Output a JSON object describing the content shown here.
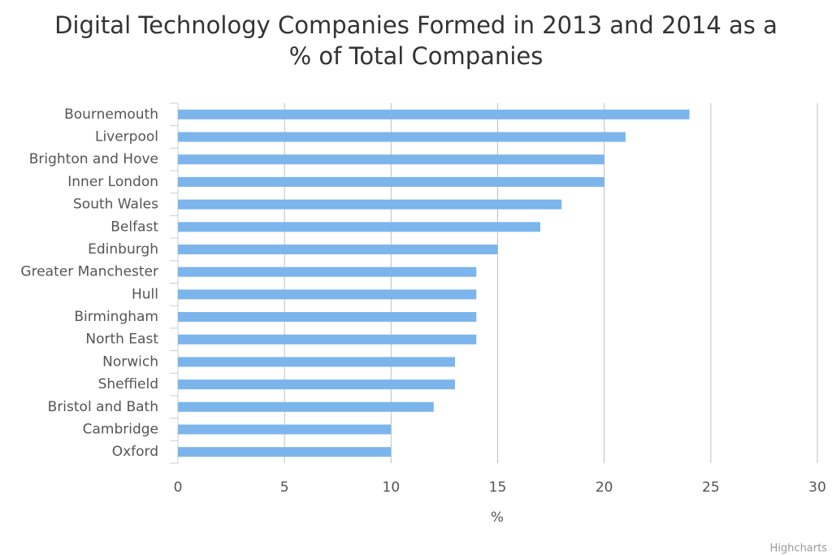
{
  "chart_data": {
    "type": "bar",
    "orientation": "horizontal",
    "title": "Digital Technology Companies Formed in 2013 and 2014 as a % of Total Companies",
    "categories": [
      "Bournemouth",
      "Liverpool",
      "Brighton and Hove",
      "Inner London",
      "South Wales",
      "Belfast",
      "Edinburgh",
      "Greater Manchester",
      "Hull",
      "Birmingham",
      "North East",
      "Norwich",
      "Sheffield",
      "Bristol and Bath",
      "Cambridge",
      "Oxford"
    ],
    "values": [
      24,
      21,
      20,
      20,
      18,
      17,
      15,
      14,
      14,
      14,
      14,
      13,
      13,
      12,
      10,
      10
    ],
    "color": "#7cb5ec",
    "xlabel": "%",
    "xlim": [
      0,
      30
    ],
    "xticks": [
      0,
      5,
      10,
      15,
      20,
      25,
      30
    ],
    "grid": true,
    "credits": "Highcharts"
  }
}
